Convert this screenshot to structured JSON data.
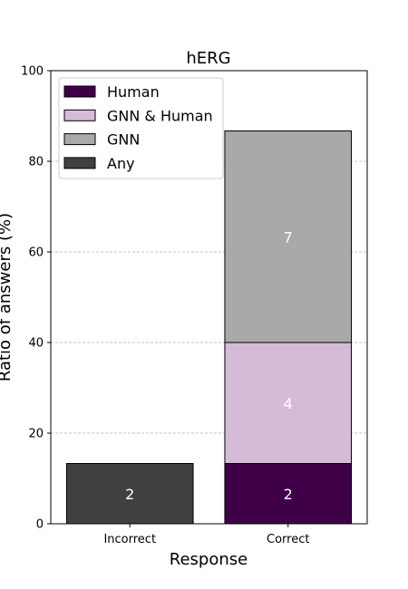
{
  "chart_data": {
    "type": "bar",
    "stacked": true,
    "title": "hERG",
    "xlabel": "Response",
    "ylabel": "Ratio of answers (%)",
    "ylim": [
      0,
      100
    ],
    "yticks": [
      "0",
      "20",
      "40",
      "60",
      "80",
      "100"
    ],
    "grid": "y, dashed",
    "legend_position": "top-left",
    "categories": [
      "Incorrect",
      "Correct"
    ],
    "series": [
      {
        "name": "Any",
        "color": "#404040",
        "values": [
          13.3,
          0
        ],
        "labels": [
          "2",
          ""
        ]
      },
      {
        "name": "Human",
        "color": "#3f0047",
        "values": [
          0,
          13.3
        ],
        "labels": [
          "",
          "2"
        ]
      },
      {
        "name": "GNN & Human",
        "color": "#d6bbd9",
        "values": [
          0,
          26.7
        ],
        "labels": [
          "",
          "4"
        ]
      },
      {
        "name": "GNN",
        "color": "#a9a9a9",
        "values": [
          0,
          46.7
        ],
        "labels": [
          "",
          "7"
        ]
      }
    ],
    "legend_order": [
      "Human",
      "GNN & Human",
      "GNN",
      "Any"
    ]
  }
}
